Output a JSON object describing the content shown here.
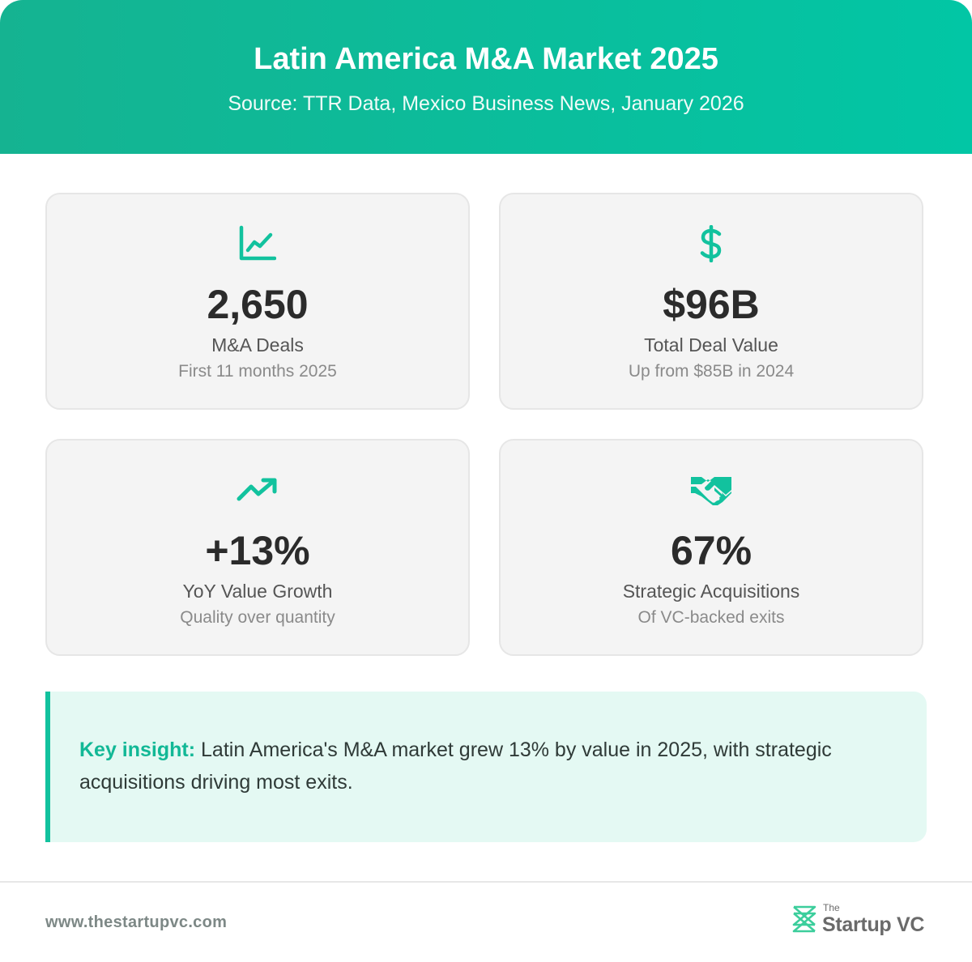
{
  "header": {
    "title": "Latin America M&A Market 2025",
    "subtitle": "Source: TTR Data, Mexico Business News, January 2026"
  },
  "stats": [
    {
      "icon": "line-chart-icon",
      "value": "2,650",
      "label": "M&A Deals",
      "sub": "First 11 months 2025"
    },
    {
      "icon": "dollar-icon",
      "value": "$96B",
      "label": "Total Deal Value",
      "sub": "Up from $85B in 2024"
    },
    {
      "icon": "trending-up-icon",
      "value": "+13%",
      "label": "YoY Value Growth",
      "sub": "Quality over quantity"
    },
    {
      "icon": "handshake-icon",
      "value": "67%",
      "label": "Strategic Acquisitions",
      "sub": "Of VC-backed exits"
    }
  ],
  "insight": {
    "label": "Key insight:",
    "text": "Latin America's M&A market grew 13% by value in 2025, with strategic acquisitions driving most exits."
  },
  "footer": {
    "url": "www.thestartupvc.com",
    "logo_small": "The",
    "logo_name": "Startup VC"
  },
  "colors": {
    "accent": "#12c29e",
    "header_start": "#15b391",
    "header_end": "#02c6a5",
    "card_bg": "#f4f4f4",
    "insight_bg": "#e4f9f3"
  }
}
